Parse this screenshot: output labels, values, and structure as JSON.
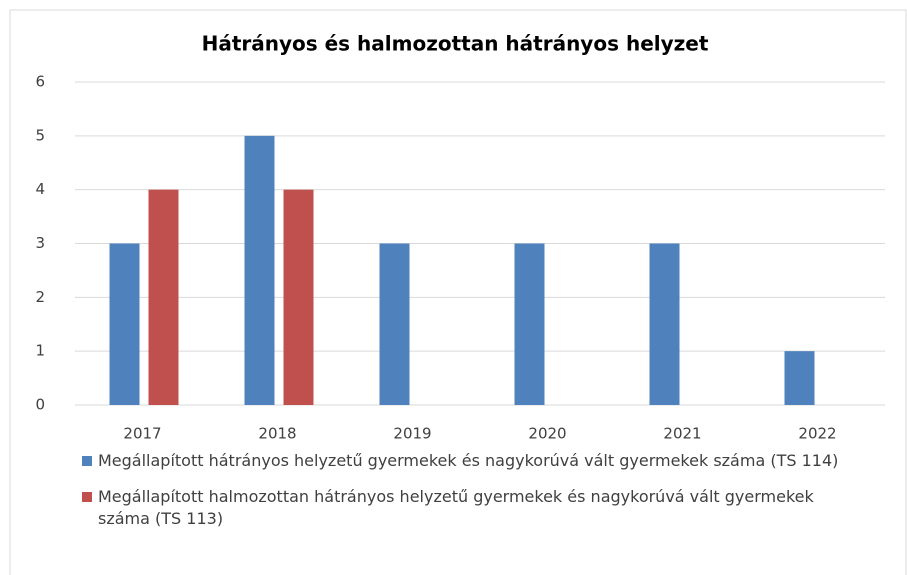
{
  "chart_data": {
    "type": "bar",
    "title": "Hátrányos és halmozottan hátrányos helyzet",
    "categories": [
      "2017",
      "2018",
      "2019",
      "2020",
      "2021",
      "2022"
    ],
    "series": [
      {
        "name": "Megállapított hátrányos helyzetű gyermekek és nagykorúvá vált gyermekek száma (TS 114)",
        "color": "#4f81bd",
        "values": [
          3,
          5,
          3,
          3,
          3,
          1
        ]
      },
      {
        "name": "Megállapított halmozottan hátrányos helyzetű gyermekek és nagykorúvá vált gyermekek száma (TS 113)",
        "color": "#c0504d",
        "values": [
          4,
          4,
          0,
          0,
          0,
          0
        ]
      }
    ],
    "ylim": [
      0,
      6
    ],
    "yticks": [
      0,
      1,
      2,
      3,
      4,
      5,
      6
    ],
    "grid": true,
    "legend": "bottom"
  }
}
